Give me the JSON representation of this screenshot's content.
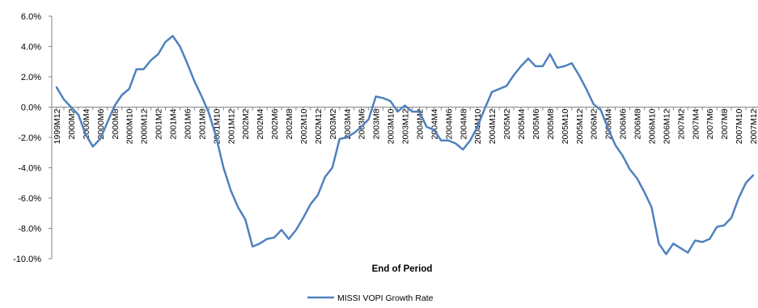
{
  "chart_data": {
    "type": "line",
    "title": "",
    "xlabel": "End of Period",
    "ylabel": "",
    "ylim": [
      -10,
      6
    ],
    "yticks": [
      6,
      4,
      2,
      0,
      -2,
      -4,
      -6,
      -8,
      -10
    ],
    "ytick_labels": [
      "6.0%",
      "4.0%",
      "2.0%",
      "0.0%",
      "-2.0%",
      "-4.0%",
      "-6.0%",
      "-8.0%",
      "-10.0%"
    ],
    "xtick_labels": [
      "1999M12",
      "2000M2",
      "2000M4",
      "2000M6",
      "2000M8",
      "2000M10",
      "2000M12",
      "2001M2",
      "2001M4",
      "2001M6",
      "2001M8",
      "2001M10",
      "2001M12",
      "2002M2",
      "2002M4",
      "2002M6",
      "2002M8",
      "2002M10",
      "2002M12",
      "2003M2",
      "2003M4",
      "2003M6",
      "2003M8",
      "2003M10",
      "2003M12",
      "2004M2",
      "2004M4",
      "2004M6",
      "2004M8",
      "2004M10",
      "2004M12",
      "2005M2",
      "2005M4",
      "2005M6",
      "2005M8",
      "2005M10",
      "2005M12",
      "2006M2",
      "2006M4",
      "2006M6",
      "2006M8",
      "2006M10",
      "2006M12",
      "2007M2",
      "2007M4",
      "2007M6",
      "2007M8",
      "2007M10",
      "2007M12"
    ],
    "legend": {
      "position": "bottom"
    },
    "color": "#4f81bd",
    "grid": false,
    "series": [
      {
        "name": "MISSI VOPI Growth Rate",
        "values": [
          1.3,
          0.5,
          0.0,
          -0.5,
          -1.8,
          -2.6,
          -2.1,
          -1.0,
          0.1,
          0.8,
          1.2,
          2.5,
          2.5,
          3.1,
          3.5,
          4.3,
          4.7,
          4.0,
          2.9,
          1.7,
          0.7,
          -0.4,
          -2.0,
          -4.0,
          -5.5,
          -6.6,
          -7.4,
          -9.2,
          -9.0,
          -8.7,
          -8.6,
          -8.1,
          -8.7,
          -8.1,
          -7.3,
          -6.4,
          -5.8,
          -4.6,
          -4.0,
          -2.1,
          -2.0,
          -1.7,
          -1.3,
          -0.8,
          0.7,
          0.6,
          0.4,
          -0.3,
          0.1,
          -0.3,
          -0.3,
          -1.3,
          -1.5,
          -2.2,
          -2.2,
          -2.4,
          -2.8,
          -2.2,
          -1.3,
          -0.1,
          1.0,
          1.2,
          1.4,
          2.1,
          2.7,
          3.2,
          2.7,
          2.7,
          3.5,
          2.6,
          2.7,
          2.9,
          2.1,
          1.2,
          0.2,
          -0.2,
          -1.4,
          -2.5,
          -3.2,
          -4.1,
          -4.7,
          -5.6,
          -6.6,
          -9.0,
          -9.7,
          -9.0,
          -9.3,
          -9.6,
          -8.8,
          -8.9,
          -8.7,
          -7.9,
          -7.8,
          -7.3,
          -6.0,
          -5.0,
          -4.5
        ]
      }
    ]
  }
}
